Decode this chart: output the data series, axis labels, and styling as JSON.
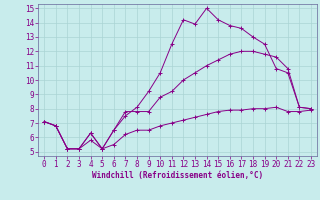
{
  "xlabel": "Windchill (Refroidissement éolien,°C)",
  "bg_color": "#c8ecec",
  "line_color": "#880088",
  "grid_color": "#aad4d4",
  "axis_color": "#666699",
  "xlim": [
    -0.5,
    23.5
  ],
  "ylim": [
    4.7,
    15.3
  ],
  "xticks": [
    0,
    1,
    2,
    3,
    4,
    5,
    6,
    7,
    8,
    9,
    10,
    11,
    12,
    13,
    14,
    15,
    16,
    17,
    18,
    19,
    20,
    21,
    22,
    23
  ],
  "yticks": [
    5,
    6,
    7,
    8,
    9,
    10,
    11,
    12,
    13,
    14,
    15
  ],
  "line1_x": [
    0,
    1,
    2,
    3,
    4,
    5,
    6,
    7,
    8,
    9,
    10,
    11,
    12,
    13,
    14,
    15,
    16,
    17,
    18,
    19,
    20,
    21,
    22,
    23
  ],
  "line1_y": [
    7.1,
    6.8,
    5.2,
    5.2,
    6.3,
    5.2,
    6.5,
    7.5,
    8.1,
    9.2,
    10.5,
    12.5,
    14.2,
    13.9,
    15.0,
    14.2,
    13.8,
    13.6,
    13.0,
    12.5,
    10.8,
    10.5,
    8.1,
    8.0
  ],
  "line2_x": [
    0,
    1,
    2,
    3,
    4,
    5,
    6,
    7,
    8,
    9,
    10,
    11,
    12,
    13,
    14,
    15,
    16,
    17,
    18,
    19,
    20,
    21,
    22,
    23
  ],
  "line2_y": [
    7.1,
    6.8,
    5.2,
    5.2,
    6.3,
    5.2,
    6.5,
    7.8,
    7.8,
    7.8,
    8.8,
    9.2,
    10.0,
    10.5,
    11.0,
    11.4,
    11.8,
    12.0,
    12.0,
    11.8,
    11.6,
    10.8,
    8.1,
    8.0
  ],
  "line3_x": [
    0,
    1,
    2,
    3,
    4,
    5,
    6,
    7,
    8,
    9,
    10,
    11,
    12,
    13,
    14,
    15,
    16,
    17,
    18,
    19,
    20,
    21,
    22,
    23
  ],
  "line3_y": [
    7.1,
    6.8,
    5.2,
    5.2,
    5.8,
    5.2,
    5.5,
    6.2,
    6.5,
    6.5,
    6.8,
    7.0,
    7.2,
    7.4,
    7.6,
    7.8,
    7.9,
    7.9,
    8.0,
    8.0,
    8.1,
    7.8,
    7.8,
    7.9
  ],
  "tick_fontsize": 5.5,
  "xlabel_fontsize": 5.5
}
